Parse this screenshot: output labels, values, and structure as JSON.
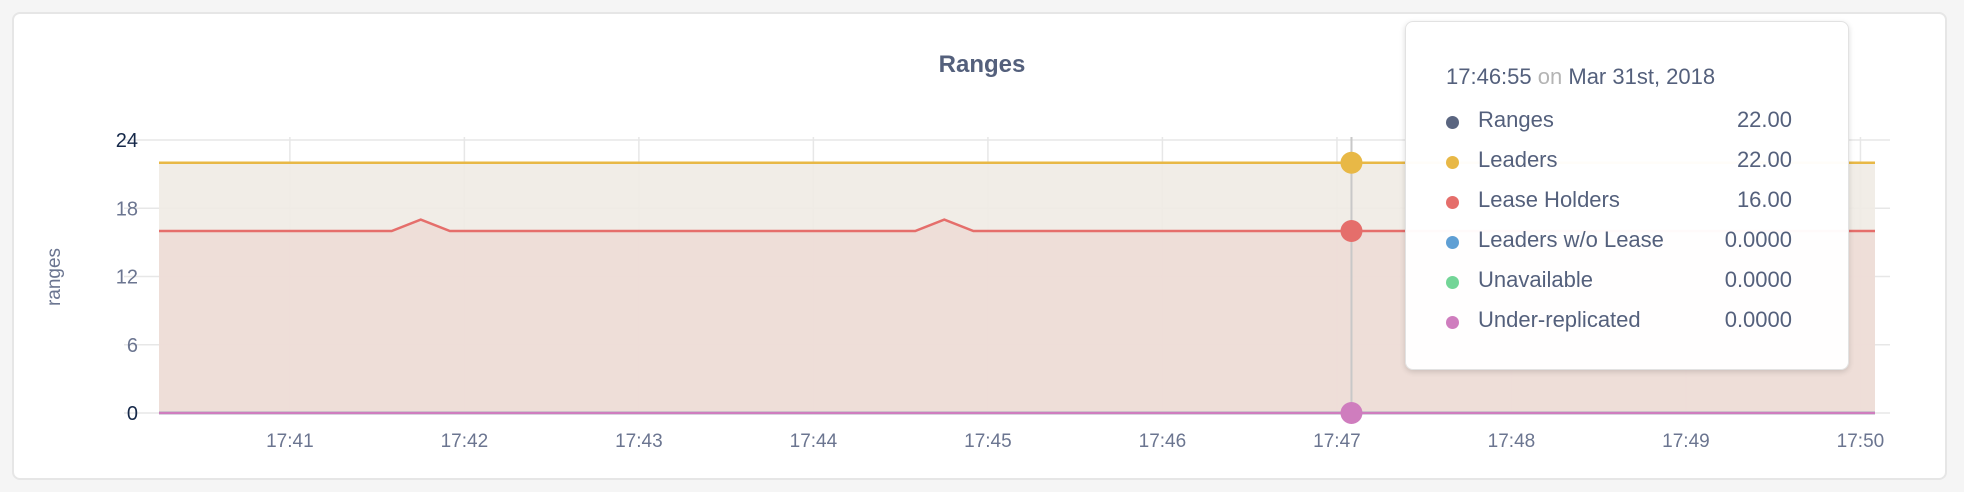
{
  "chart_data": {
    "type": "area",
    "title": "Ranges",
    "ylabel": "ranges",
    "xlabel": "",
    "ylim": [
      0,
      24
    ],
    "yticks": [
      "0",
      "6",
      "12",
      "18",
      "24"
    ],
    "xlim": [
      "17:40:15",
      "17:50:05"
    ],
    "xticks": [
      "17:41",
      "17:42",
      "17:43",
      "17:44",
      "17:45",
      "17:46",
      "17:47",
      "17:48",
      "17:49",
      "17:50"
    ],
    "grid": true,
    "series": [
      {
        "name": "Ranges",
        "color": "#5a6580",
        "points": [
          [
            "17:40:15",
            22
          ],
          [
            "17:50:05",
            22
          ]
        ]
      },
      {
        "name": "Leaders",
        "color": "#e8b846",
        "fill": "#efebe4",
        "points": [
          [
            "17:40:15",
            22
          ],
          [
            "17:50:05",
            22
          ]
        ]
      },
      {
        "name": "Lease Holders",
        "color": "#e56e6b",
        "fill": "#eddcd6",
        "points": [
          [
            "17:40:15",
            16
          ],
          [
            "17:41:35",
            16
          ],
          [
            "17:41:45",
            17
          ],
          [
            "17:41:55",
            16
          ],
          [
            "17:44:35",
            16
          ],
          [
            "17:44:45",
            17
          ],
          [
            "17:44:55",
            16
          ],
          [
            "17:50:05",
            16
          ]
        ]
      },
      {
        "name": "Leaders w/o Lease",
        "color": "#5f9fd4",
        "points": [
          [
            "17:40:15",
            0
          ],
          [
            "17:50:05",
            0
          ]
        ]
      },
      {
        "name": "Unavailable",
        "color": "#73d597",
        "points": [
          [
            "17:40:15",
            0
          ],
          [
            "17:50:05",
            0
          ]
        ]
      },
      {
        "name": "Under-replicated",
        "color": "#cf7dbe",
        "points": [
          [
            "17:40:15",
            0
          ],
          [
            "17:50:05",
            0
          ]
        ]
      }
    ]
  },
  "tooltip": {
    "time": "17:46:55",
    "on": "on",
    "date": "Mar 31st, 2018",
    "rows": [
      {
        "label": "Ranges",
        "value": "22.00",
        "color": "#5a6580"
      },
      {
        "label": "Leaders",
        "value": "22.00",
        "color": "#e8b846"
      },
      {
        "label": "Lease Holders",
        "value": "16.00",
        "color": "#e56e6b"
      },
      {
        "label": "Leaders w/o Lease",
        "value": "0.0000",
        "color": "#5f9fd4"
      },
      {
        "label": "Unavailable",
        "value": "0.0000",
        "color": "#73d597"
      },
      {
        "label": "Under-replicated",
        "value": "0.0000",
        "color": "#cf7dbe"
      }
    ]
  }
}
